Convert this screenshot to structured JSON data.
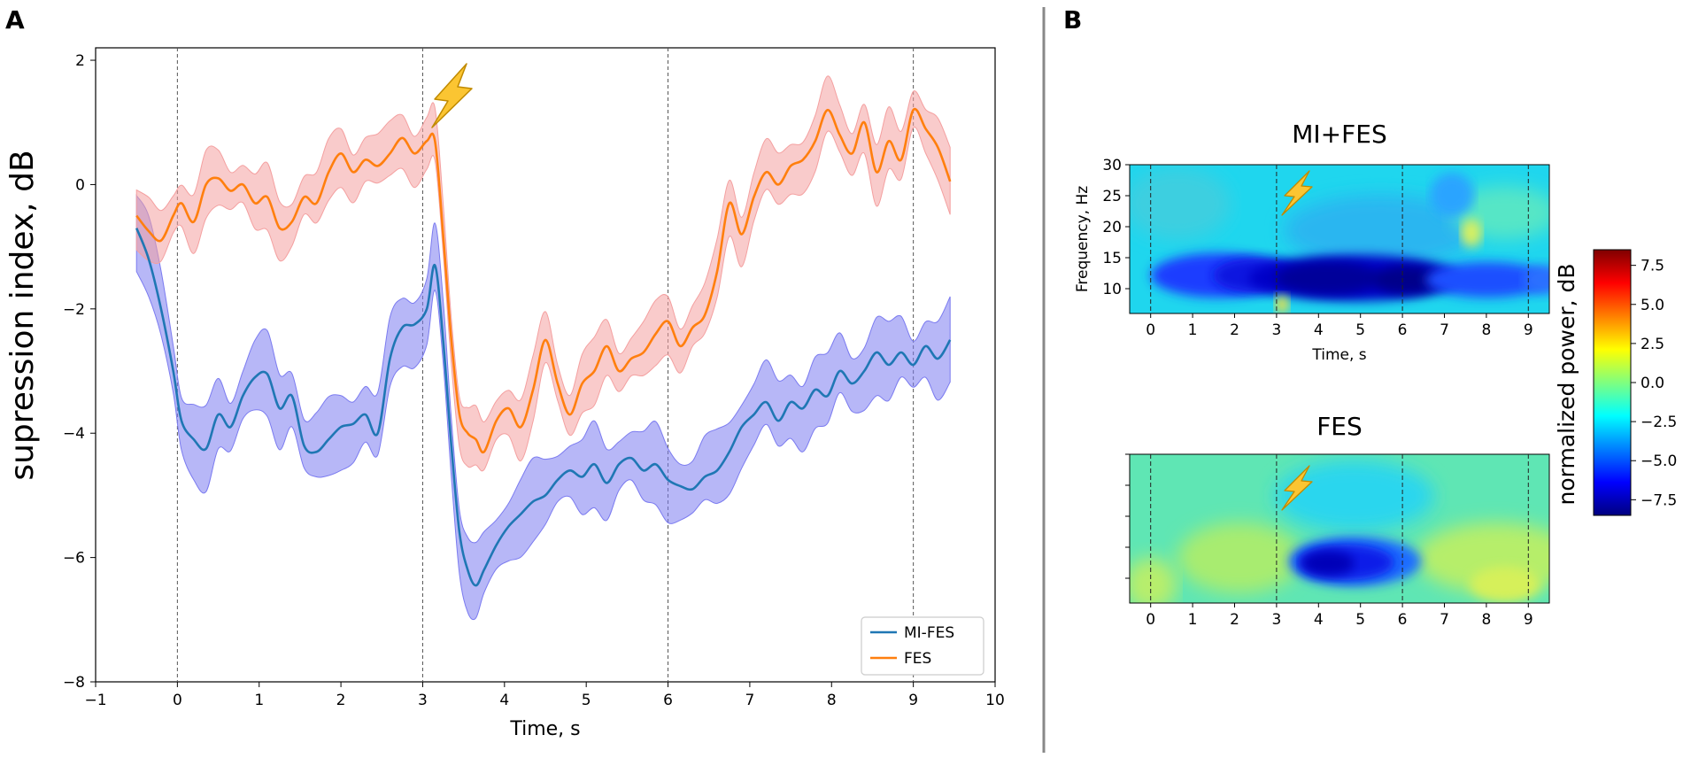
{
  "chart_data": [
    {
      "panel": "A",
      "type": "line",
      "xlabel": "Time, s",
      "ylabel": "supression index, dB",
      "xlim": [
        -1,
        10
      ],
      "ylim": [
        -8,
        2.2
      ],
      "xticks": [
        "−1",
        "0",
        "1",
        "2",
        "3",
        "4",
        "5",
        "6",
        "7",
        "8",
        "9",
        "10"
      ],
      "yticks": [
        "2",
        "0",
        "−2",
        "−4",
        "−6",
        "−8"
      ],
      "vlines": [
        0,
        3,
        6,
        9
      ],
      "stimulus_marker_time": 3.35,
      "legend": {
        "placement": "lower-right",
        "entries": [
          "MI-FES",
          "FES"
        ]
      },
      "series": [
        {
          "name": "MI-FES",
          "color": "#1f77b4",
          "band_color": "#7b7bf0",
          "x": [
            -0.5,
            -0.35,
            -0.2,
            -0.05,
            0.05,
            0.2,
            0.35,
            0.5,
            0.65,
            0.8,
            0.95,
            1.1,
            1.25,
            1.4,
            1.55,
            1.7,
            1.85,
            2.0,
            2.15,
            2.3,
            2.45,
            2.6,
            2.75,
            2.9,
            3.05,
            3.15,
            3.25,
            3.35,
            3.45,
            3.55,
            3.65,
            3.75,
            3.9,
            4.05,
            4.2,
            4.35,
            4.5,
            4.65,
            4.8,
            4.95,
            5.1,
            5.25,
            5.4,
            5.55,
            5.7,
            5.85,
            6.0,
            6.15,
            6.3,
            6.45,
            6.6,
            6.75,
            6.9,
            7.05,
            7.2,
            7.35,
            7.5,
            7.65,
            7.8,
            7.95,
            8.1,
            8.25,
            8.4,
            8.55,
            8.7,
            8.85,
            9.0,
            9.15,
            9.3,
            9.45
          ],
          "y": [
            -0.7,
            -1.2,
            -2.0,
            -3.0,
            -3.8,
            -4.1,
            -4.25,
            -3.7,
            -3.9,
            -3.4,
            -3.1,
            -3.05,
            -3.6,
            -3.4,
            -4.2,
            -4.3,
            -4.1,
            -3.9,
            -3.85,
            -3.7,
            -4.0,
            -2.8,
            -2.3,
            -2.25,
            -2.0,
            -1.3,
            -2.5,
            -4.2,
            -5.6,
            -6.2,
            -6.45,
            -6.2,
            -5.8,
            -5.5,
            -5.3,
            -5.1,
            -5.0,
            -4.75,
            -4.6,
            -4.7,
            -4.5,
            -4.8,
            -4.5,
            -4.4,
            -4.6,
            -4.5,
            -4.75,
            -4.85,
            -4.9,
            -4.7,
            -4.6,
            -4.3,
            -3.9,
            -3.7,
            -3.5,
            -3.8,
            -3.5,
            -3.6,
            -3.3,
            -3.4,
            -3.0,
            -3.2,
            -3.0,
            -2.7,
            -2.9,
            -2.7,
            -2.9,
            -2.6,
            -2.8,
            -2.5
          ],
          "err": 0.7
        },
        {
          "name": "FES",
          "color": "#ff7f0e",
          "band_color": "#f4a0a0",
          "x": [
            -0.5,
            -0.35,
            -0.2,
            -0.05,
            0.05,
            0.2,
            0.35,
            0.5,
            0.65,
            0.8,
            0.95,
            1.1,
            1.25,
            1.4,
            1.55,
            1.7,
            1.85,
            2.0,
            2.15,
            2.3,
            2.45,
            2.6,
            2.75,
            2.9,
            3.05,
            3.15,
            3.25,
            3.35,
            3.45,
            3.55,
            3.65,
            3.75,
            3.9,
            4.05,
            4.2,
            4.35,
            4.5,
            4.65,
            4.8,
            4.95,
            5.1,
            5.25,
            5.4,
            5.55,
            5.7,
            5.85,
            6.0,
            6.15,
            6.3,
            6.45,
            6.6,
            6.75,
            6.9,
            7.05,
            7.2,
            7.35,
            7.5,
            7.65,
            7.8,
            7.95,
            8.1,
            8.25,
            8.4,
            8.55,
            8.7,
            8.85,
            9.0,
            9.15,
            9.3,
            9.45
          ],
          "y": [
            -0.5,
            -0.75,
            -0.9,
            -0.5,
            -0.3,
            -0.6,
            0.0,
            0.1,
            -0.1,
            0.0,
            -0.3,
            -0.2,
            -0.7,
            -0.6,
            -0.2,
            -0.3,
            0.2,
            0.5,
            0.2,
            0.4,
            0.3,
            0.5,
            0.75,
            0.5,
            0.7,
            0.7,
            -0.8,
            -2.5,
            -3.7,
            -4.0,
            -4.1,
            -4.3,
            -3.8,
            -3.6,
            -3.9,
            -3.3,
            -2.5,
            -3.2,
            -3.7,
            -3.2,
            -3.0,
            -2.6,
            -3.0,
            -2.8,
            -2.7,
            -2.4,
            -2.2,
            -2.6,
            -2.3,
            -2.1,
            -1.4,
            -0.3,
            -0.8,
            -0.2,
            0.2,
            0.0,
            0.3,
            0.4,
            0.7,
            1.2,
            0.8,
            0.5,
            1.0,
            0.2,
            0.7,
            0.4,
            1.2,
            0.9,
            0.6,
            0.05
          ],
          "err": 0.55
        }
      ]
    },
    {
      "panel": "B",
      "type": "heatmap",
      "xlabel": "Time, s",
      "ylabel": "Frequency, Hz",
      "xlim": [
        -0.5,
        9.5
      ],
      "ylim": [
        6,
        30
      ],
      "xticks": [
        "0",
        "1",
        "2",
        "3",
        "4",
        "5",
        "6",
        "7",
        "8",
        "9"
      ],
      "yticks": [
        "30",
        "25",
        "20",
        "15",
        "10"
      ],
      "vlines": [
        0,
        3,
        6,
        9
      ],
      "colorbar": {
        "label": "normalized power, dB",
        "range": [
          -8.5,
          8.5
        ],
        "ticks": [
          "7.5",
          "5.0",
          "2.5",
          "0.0",
          "−2.5",
          "−5.0",
          "−7.5"
        ],
        "colors": [
          "#00007f",
          "#0000ff",
          "#007fff",
          "#00ffff",
          "#7fff7f",
          "#ffff00",
          "#ff7f00",
          "#ff0000",
          "#7f0000"
        ]
      },
      "maps": [
        {
          "title": "MI+FES",
          "note": "strong suppression band at 8–15 Hz from 0.3–9.5 s, deepest 3.3–6.2 s"
        },
        {
          "title": "FES",
          "note": "suppression at 8–13 Hz from 3.3–6.2 s; elsewhere near zero"
        }
      ]
    }
  ]
}
